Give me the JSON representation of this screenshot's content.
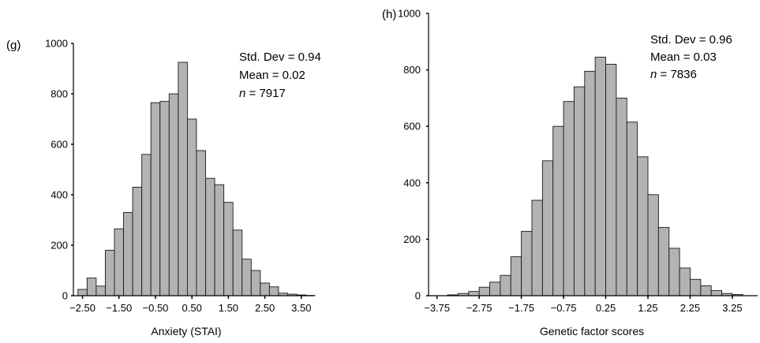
{
  "chart_data": [
    {
      "type": "bar",
      "panel_label": "(g)",
      "xlabel": "Anxiety (STAI)",
      "ylabel": "",
      "ylim": [
        0,
        1000
      ],
      "yticks": [
        0,
        200,
        400,
        600,
        800,
        1000
      ],
      "xticks": [
        -2.5,
        -1.5,
        -0.5,
        0.5,
        1.5,
        2.5,
        3.5
      ],
      "xtick_labels": [
        "−2.50",
        "−1.50",
        "−0.50",
        "0.50",
        "1.50",
        "2.50",
        "3.50"
      ],
      "xlim": [
        -2.75,
        3.85
      ],
      "bin_width": 0.25,
      "first_bin_start": -2.625,
      "values": [
        25,
        70,
        38,
        180,
        265,
        330,
        430,
        560,
        765,
        770,
        800,
        925,
        700,
        575,
        465,
        440,
        370,
        260,
        145,
        100,
        50,
        35,
        10,
        6,
        3,
        1
      ],
      "stats": {
        "std_dev": "Std. Dev = 0.94",
        "mean": "Mean = 0.02",
        "n_prefix": "n",
        "n_value": " = 7917"
      }
    },
    {
      "type": "bar",
      "panel_label": "(h)",
      "xlabel": "Genetic factor scores",
      "ylabel": "",
      "ylim": [
        0,
        1000
      ],
      "yticks": [
        0,
        200,
        400,
        600,
        800,
        1000
      ],
      "xticks": [
        -3.75,
        -2.75,
        -1.75,
        -0.75,
        0.25,
        1.25,
        2.25,
        3.25
      ],
      "xtick_labels": [
        "−3.75",
        "−2.75",
        "−1.75",
        "−0.75",
        "0.25",
        "1.25",
        "2.25",
        "3.25"
      ],
      "xlim": [
        -3.95,
        3.85
      ],
      "bin_width": 0.25,
      "first_bin_start": -3.5,
      "values": [
        3,
        8,
        15,
        30,
        48,
        72,
        138,
        228,
        338,
        478,
        600,
        688,
        740,
        795,
        845,
        820,
        700,
        615,
        492,
        358,
        242,
        168,
        98,
        58,
        35,
        18,
        8,
        4
      ],
      "stats": {
        "std_dev": "Std. Dev = 0.96",
        "mean": "Mean = 0.03",
        "n_prefix": "n",
        "n_value": " = 7836"
      }
    }
  ]
}
